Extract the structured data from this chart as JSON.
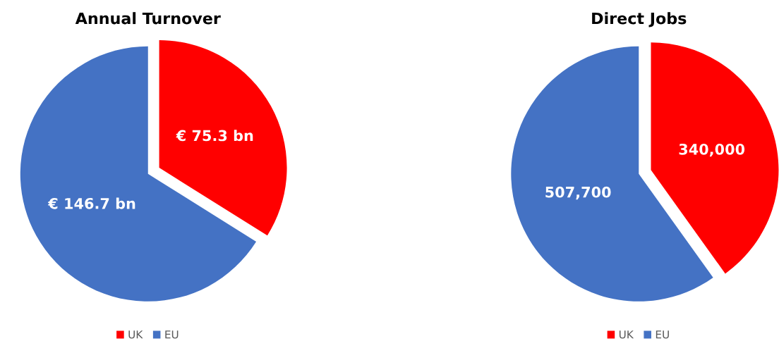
{
  "chart_data": [
    {
      "type": "pie",
      "title": "Annual Turnover",
      "categories": [
        "UK",
        "EU"
      ],
      "values": [
        75.3,
        146.7
      ],
      "colors": [
        "#ff0000",
        "#4472c4"
      ],
      "value_labels": [
        "€ 75.3 bn",
        "€ 146.7 bn"
      ],
      "legend": "bottom"
    },
    {
      "type": "pie",
      "title": "Direct Jobs",
      "categories": [
        "UK",
        "EU"
      ],
      "values": [
        340000,
        507700
      ],
      "colors": [
        "#ff0000",
        "#4472c4"
      ],
      "value_labels": [
        "340,000",
        "507,700"
      ],
      "legend": "bottom"
    }
  ]
}
